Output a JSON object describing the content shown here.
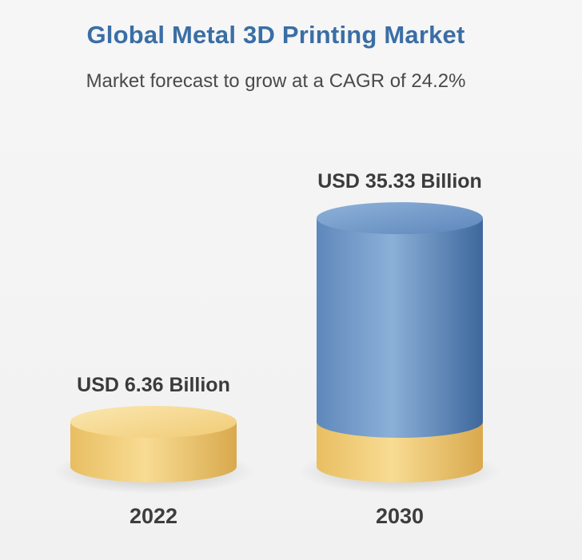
{
  "chart_data": {
    "type": "bar",
    "style": "3d-cylinder",
    "title": "Global Metal 3D Printing Market",
    "subtitle": "Market forecast to grow at a CAGR of 24.2%",
    "categories": [
      "2022",
      "2030"
    ],
    "values": [
      6.36,
      35.33
    ],
    "value_labels": [
      "USD 6.36 Billion",
      "USD 35.33 Billion"
    ],
    "unit": "USD Billion",
    "base_value": 6.36,
    "colors": {
      "title": "#3a6ea5",
      "base": "#f0cd7a",
      "base_shade": "#d9a94d",
      "growth": "#6f96c4",
      "growth_shade": "#3e679c"
    }
  }
}
